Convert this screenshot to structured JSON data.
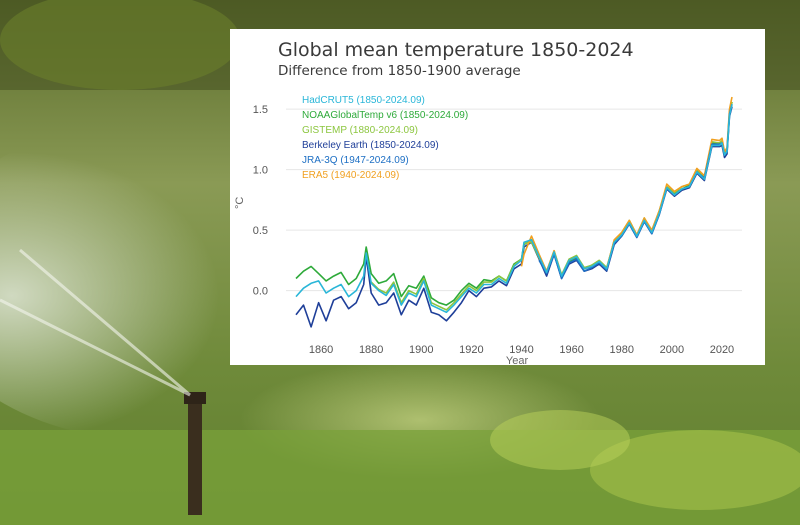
{
  "colors": {
    "hadcrut": "#29b6d8",
    "noaa": "#2eaa3a",
    "gistemp": "#8cc63f",
    "berkeley": "#1f3f99",
    "jra3q": "#1d6fc4",
    "era5": "#f0a020"
  },
  "chart_data": {
    "type": "line",
    "title": "Global mean temperature 1850-2024",
    "subtitle": "Difference from 1850-1900 average",
    "xlabel": "Year",
    "ylabel": "°C",
    "xlim": [
      1846,
      2028
    ],
    "ylim": [
      -0.45,
      1.65
    ],
    "xticks": [
      1860,
      1880,
      1900,
      1920,
      1940,
      1960,
      1980,
      2000,
      2020
    ],
    "yticks": [
      0.0,
      0.5,
      1.0,
      1.5
    ],
    "xtick_labels": [
      "1860",
      "1880",
      "1900",
      "1920",
      "1940",
      "1960",
      "1980",
      "2000",
      "2020"
    ],
    "ytick_labels": [
      "0.0",
      "0.5",
      "1.0",
      "1.5"
    ],
    "grid": "horizontal",
    "legend_position": "top-left",
    "series": [
      {
        "key": "hadcrut",
        "name": "HadCRUT5 (1850-2024.09)",
        "x": [
          1850,
          1853,
          1856,
          1859,
          1862,
          1865,
          1868,
          1871,
          1874,
          1877,
          1878,
          1880,
          1883,
          1886,
          1889,
          1892,
          1895,
          1898,
          1901,
          1904,
          1907,
          1910,
          1913,
          1916,
          1919,
          1922,
          1925,
          1928,
          1931,
          1934,
          1937,
          1940,
          1941,
          1944,
          1947,
          1950,
          1953,
          1956,
          1959,
          1962,
          1965,
          1968,
          1971,
          1974,
          1977,
          1980,
          1983,
          1986,
          1989,
          1992,
          1995,
          1998,
          2001,
          2004,
          2007,
          2010,
          2013,
          2016,
          2019,
          2020,
          2021,
          2022,
          2023,
          2024
        ],
        "y": [
          -0.05,
          0.02,
          0.06,
          0.08,
          -0.02,
          0.02,
          0.05,
          -0.05,
          0.0,
          0.12,
          0.31,
          0.06,
          0.0,
          -0.04,
          0.05,
          -0.12,
          -0.02,
          -0.05,
          0.08,
          -0.12,
          -0.15,
          -0.18,
          -0.12,
          -0.05,
          0.02,
          -0.02,
          0.05,
          0.05,
          0.1,
          0.06,
          0.2,
          0.25,
          0.4,
          0.42,
          0.28,
          0.15,
          0.32,
          0.12,
          0.25,
          0.28,
          0.18,
          0.2,
          0.24,
          0.18,
          0.4,
          0.46,
          0.56,
          0.45,
          0.58,
          0.48,
          0.64,
          0.85,
          0.79,
          0.84,
          0.86,
          0.98,
          0.92,
          1.2,
          1.2,
          1.22,
          1.12,
          1.15,
          1.45,
          1.54
        ]
      },
      {
        "key": "noaa",
        "name": "NOAAGlobalTemp v6 (1850-2024.09)",
        "x": [
          1850,
          1853,
          1856,
          1859,
          1862,
          1865,
          1868,
          1871,
          1874,
          1877,
          1878,
          1880,
          1883,
          1886,
          1889,
          1892,
          1895,
          1898,
          1901,
          1904,
          1907,
          1910,
          1913,
          1916,
          1919,
          1922,
          1925,
          1928,
          1931,
          1934,
          1937,
          1940,
          1941,
          1944,
          1947,
          1950,
          1953,
          1956,
          1959,
          1962,
          1965,
          1968,
          1971,
          1974,
          1977,
          1980,
          1983,
          1986,
          1989,
          1992,
          1995,
          1998,
          2001,
          2004,
          2007,
          2010,
          2013,
          2016,
          2019,
          2020,
          2021,
          2022,
          2023,
          2024
        ],
        "y": [
          0.1,
          0.16,
          0.2,
          0.14,
          0.08,
          0.12,
          0.15,
          0.05,
          0.1,
          0.22,
          0.36,
          0.14,
          0.06,
          0.08,
          0.14,
          -0.05,
          0.04,
          0.02,
          0.12,
          -0.06,
          -0.1,
          -0.12,
          -0.08,
          0.0,
          0.06,
          0.02,
          0.09,
          0.08,
          0.12,
          0.08,
          0.22,
          0.26,
          0.38,
          0.42,
          0.28,
          0.16,
          0.3,
          0.12,
          0.24,
          0.27,
          0.18,
          0.21,
          0.24,
          0.18,
          0.41,
          0.46,
          0.56,
          0.45,
          0.58,
          0.48,
          0.64,
          0.86,
          0.8,
          0.84,
          0.87,
          0.99,
          0.93,
          1.22,
          1.22,
          1.23,
          1.14,
          1.16,
          1.47,
          1.56
        ]
      },
      {
        "key": "gistemp",
        "name": "GISTEMP (1880-2024.09)",
        "x": [
          1880,
          1883,
          1886,
          1889,
          1892,
          1895,
          1898,
          1901,
          1904,
          1907,
          1910,
          1913,
          1916,
          1919,
          1922,
          1925,
          1928,
          1931,
          1934,
          1937,
          1940,
          1941,
          1944,
          1947,
          1950,
          1953,
          1956,
          1959,
          1962,
          1965,
          1968,
          1971,
          1974,
          1977,
          1980,
          1983,
          1986,
          1989,
          1992,
          1995,
          1998,
          2001,
          2004,
          2007,
          2010,
          2013,
          2016,
          2019,
          2020,
          2021,
          2022,
          2023,
          2024
        ],
        "y": [
          0.07,
          0.01,
          -0.02,
          0.07,
          -0.1,
          0.0,
          -0.03,
          0.1,
          -0.1,
          -0.13,
          -0.16,
          -0.1,
          -0.03,
          0.04,
          0.0,
          0.07,
          0.07,
          0.12,
          0.08,
          0.21,
          0.26,
          0.39,
          0.4,
          0.27,
          0.15,
          0.33,
          0.13,
          0.26,
          0.29,
          0.19,
          0.21,
          0.25,
          0.19,
          0.41,
          0.48,
          0.58,
          0.46,
          0.6,
          0.49,
          0.66,
          0.86,
          0.81,
          0.86,
          0.88,
          1.0,
          0.94,
          1.23,
          1.22,
          1.24,
          1.13,
          1.16,
          1.48,
          1.56
        ]
      },
      {
        "key": "berkeley",
        "name": "Berkeley Earth (1850-2024.09)",
        "x": [
          1850,
          1853,
          1856,
          1859,
          1862,
          1865,
          1868,
          1871,
          1874,
          1877,
          1878,
          1880,
          1883,
          1886,
          1889,
          1892,
          1895,
          1898,
          1901,
          1904,
          1907,
          1910,
          1913,
          1916,
          1919,
          1922,
          1925,
          1928,
          1931,
          1934,
          1937,
          1940,
          1941,
          1944,
          1947,
          1950,
          1953,
          1956,
          1959,
          1962,
          1965,
          1968,
          1971,
          1974,
          1977,
          1980,
          1983,
          1986,
          1989,
          1992,
          1995,
          1998,
          2001,
          2004,
          2007,
          2010,
          2013,
          2016,
          2019,
          2020,
          2021,
          2022,
          2023,
          2024
        ],
        "y": [
          -0.2,
          -0.12,
          -0.3,
          -0.1,
          -0.25,
          -0.08,
          -0.05,
          -0.15,
          -0.1,
          0.05,
          0.28,
          -0.02,
          -0.12,
          -0.1,
          -0.02,
          -0.2,
          -0.08,
          -0.12,
          0.02,
          -0.18,
          -0.2,
          -0.25,
          -0.18,
          -0.1,
          0.0,
          -0.05,
          0.02,
          0.03,
          0.08,
          0.04,
          0.18,
          0.22,
          0.36,
          0.4,
          0.26,
          0.12,
          0.3,
          0.1,
          0.22,
          0.25,
          0.16,
          0.18,
          0.22,
          0.16,
          0.38,
          0.45,
          0.55,
          0.44,
          0.57,
          0.47,
          0.63,
          0.84,
          0.78,
          0.83,
          0.85,
          0.97,
          0.91,
          1.19,
          1.19,
          1.2,
          1.1,
          1.13,
          1.44,
          1.52
        ]
      },
      {
        "key": "jra3q",
        "name": "JRA-3Q (1947-2024.09)",
        "x": [
          1947,
          1950,
          1953,
          1956,
          1959,
          1962,
          1965,
          1968,
          1971,
          1974,
          1977,
          1980,
          1983,
          1986,
          1989,
          1992,
          1995,
          1998,
          2001,
          2004,
          2007,
          2010,
          2013,
          2016,
          2019,
          2020,
          2021,
          2022,
          2023,
          2024
        ],
        "y": [
          0.25,
          0.14,
          0.3,
          0.1,
          0.23,
          0.26,
          0.16,
          0.19,
          0.23,
          0.17,
          0.39,
          0.45,
          0.55,
          0.44,
          0.57,
          0.47,
          0.63,
          0.85,
          0.79,
          0.84,
          0.86,
          0.98,
          0.93,
          1.21,
          1.21,
          1.22,
          1.12,
          1.15,
          1.46,
          1.54
        ]
      },
      {
        "key": "era5",
        "name": "ERA5 (1940-2024.09)",
        "x": [
          1940,
          1941,
          1944,
          1947,
          1950,
          1953,
          1956,
          1959,
          1962,
          1965,
          1968,
          1971,
          1974,
          1977,
          1980,
          1983,
          1986,
          1989,
          1992,
          1995,
          1998,
          2001,
          2004,
          2007,
          2010,
          2013,
          2016,
          2019,
          2020,
          2021,
          2022,
          2023,
          2024
        ],
        "y": [
          0.2,
          0.3,
          0.45,
          0.3,
          0.16,
          0.33,
          0.12,
          0.25,
          0.28,
          0.18,
          0.2,
          0.24,
          0.18,
          0.42,
          0.48,
          0.58,
          0.46,
          0.6,
          0.5,
          0.66,
          0.88,
          0.82,
          0.86,
          0.88,
          1.01,
          0.95,
          1.25,
          1.24,
          1.26,
          1.15,
          1.18,
          1.5,
          1.6
        ]
      }
    ]
  }
}
